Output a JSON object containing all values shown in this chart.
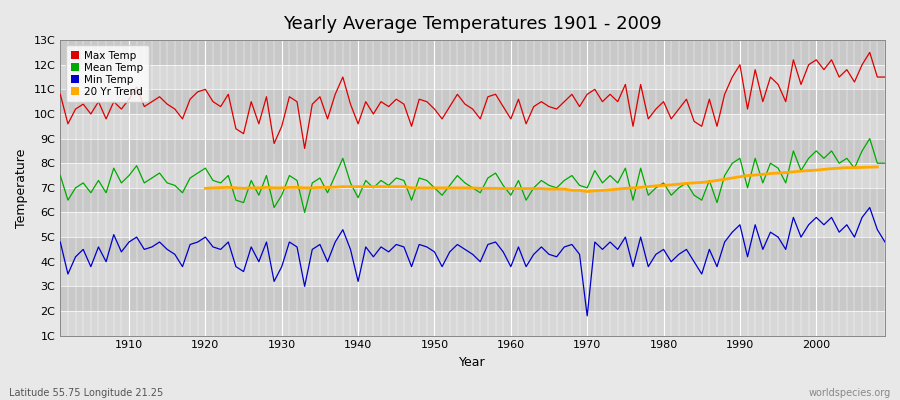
{
  "title": "Yearly Average Temperatures 1901 - 2009",
  "xlabel": "Year",
  "ylabel": "Temperature",
  "bottom_left_text": "Latitude 55.75 Longitude 21.25",
  "bottom_right_text": "worldspecies.org",
  "background_color": "#e8e8e8",
  "plot_bg_color": "#d8d8d8",
  "grid_color": "#ffffff",
  "stripe_colors": [
    "#d8d8d8",
    "#c8c8c8"
  ],
  "ylim_min": 1,
  "ylim_max": 13,
  "ytick_labels": [
    "1C",
    "2C",
    "3C",
    "4C",
    "5C",
    "6C",
    "7C",
    "8C",
    "9C",
    "10C",
    "11C",
    "12C",
    "13C"
  ],
  "ytick_values": [
    1,
    2,
    3,
    4,
    5,
    6,
    7,
    8,
    9,
    10,
    11,
    12,
    13
  ],
  "years": [
    1901,
    1902,
    1903,
    1904,
    1905,
    1906,
    1907,
    1908,
    1909,
    1910,
    1911,
    1912,
    1913,
    1914,
    1915,
    1916,
    1917,
    1918,
    1919,
    1920,
    1921,
    1922,
    1923,
    1924,
    1925,
    1926,
    1927,
    1928,
    1929,
    1930,
    1931,
    1932,
    1933,
    1934,
    1935,
    1936,
    1937,
    1938,
    1939,
    1940,
    1941,
    1942,
    1943,
    1944,
    1945,
    1946,
    1947,
    1948,
    1949,
    1950,
    1951,
    1952,
    1953,
    1954,
    1955,
    1956,
    1957,
    1958,
    1959,
    1960,
    1961,
    1962,
    1963,
    1964,
    1965,
    1966,
    1967,
    1968,
    1969,
    1970,
    1971,
    1972,
    1973,
    1974,
    1975,
    1976,
    1977,
    1978,
    1979,
    1980,
    1981,
    1982,
    1983,
    1984,
    1985,
    1986,
    1987,
    1988,
    1989,
    1990,
    1991,
    1992,
    1993,
    1994,
    1995,
    1996,
    1997,
    1998,
    1999,
    2000,
    2001,
    2002,
    2003,
    2004,
    2005,
    2006,
    2007,
    2008,
    2009
  ],
  "max_temp": [
    10.8,
    9.6,
    10.2,
    10.4,
    10.0,
    10.5,
    9.8,
    10.5,
    10.2,
    10.6,
    11.1,
    10.3,
    10.5,
    10.7,
    10.4,
    10.2,
    9.8,
    10.6,
    10.9,
    11.0,
    10.5,
    10.3,
    10.8,
    9.4,
    9.2,
    10.5,
    9.6,
    10.7,
    8.8,
    9.5,
    10.7,
    10.5,
    8.6,
    10.4,
    10.7,
    9.8,
    10.8,
    11.5,
    10.4,
    9.6,
    10.5,
    10.0,
    10.5,
    10.3,
    10.6,
    10.4,
    9.5,
    10.6,
    10.5,
    10.2,
    9.8,
    10.3,
    10.8,
    10.4,
    10.2,
    9.8,
    10.7,
    10.8,
    10.3,
    9.8,
    10.6,
    9.6,
    10.3,
    10.5,
    10.3,
    10.2,
    10.5,
    10.8,
    10.3,
    10.8,
    11.0,
    10.5,
    10.8,
    10.5,
    11.2,
    9.5,
    11.2,
    9.8,
    10.2,
    10.5,
    9.8,
    10.2,
    10.6,
    9.7,
    9.5,
    10.6,
    9.5,
    10.8,
    11.5,
    12.0,
    10.2,
    11.8,
    10.5,
    11.5,
    11.2,
    10.5,
    12.2,
    11.2,
    12.0,
    12.2,
    11.8,
    12.2,
    11.5,
    11.8,
    11.3,
    12.0,
    12.5,
    11.5,
    11.5
  ],
  "mean_temp": [
    7.5,
    6.5,
    7.0,
    7.2,
    6.8,
    7.3,
    6.8,
    7.8,
    7.2,
    7.5,
    7.9,
    7.2,
    7.4,
    7.6,
    7.2,
    7.1,
    6.8,
    7.4,
    7.6,
    7.8,
    7.3,
    7.2,
    7.5,
    6.5,
    6.4,
    7.3,
    6.7,
    7.5,
    6.2,
    6.7,
    7.5,
    7.3,
    6.0,
    7.2,
    7.4,
    6.8,
    7.5,
    8.2,
    7.2,
    6.6,
    7.3,
    7.0,
    7.3,
    7.1,
    7.4,
    7.3,
    6.5,
    7.4,
    7.3,
    7.0,
    6.7,
    7.1,
    7.5,
    7.2,
    7.0,
    6.8,
    7.4,
    7.6,
    7.1,
    6.7,
    7.3,
    6.5,
    7.0,
    7.3,
    7.1,
    7.0,
    7.3,
    7.5,
    7.1,
    7.0,
    7.7,
    7.2,
    7.5,
    7.2,
    7.8,
    6.5,
    7.8,
    6.7,
    7.0,
    7.2,
    6.7,
    7.0,
    7.2,
    6.7,
    6.5,
    7.3,
    6.4,
    7.5,
    8.0,
    8.2,
    7.0,
    8.2,
    7.2,
    8.0,
    7.8,
    7.2,
    8.5,
    7.7,
    8.2,
    8.5,
    8.2,
    8.5,
    8.0,
    8.2,
    7.8,
    8.5,
    9.0,
    8.0,
    8.0
  ],
  "min_temp": [
    4.8,
    3.5,
    4.2,
    4.5,
    3.8,
    4.6,
    4.0,
    5.1,
    4.4,
    4.8,
    5.0,
    4.5,
    4.6,
    4.8,
    4.5,
    4.3,
    3.8,
    4.7,
    4.8,
    5.0,
    4.6,
    4.5,
    4.8,
    3.8,
    3.6,
    4.6,
    4.0,
    4.8,
    3.2,
    3.8,
    4.8,
    4.6,
    3.0,
    4.5,
    4.7,
    4.0,
    4.8,
    5.3,
    4.5,
    3.2,
    4.6,
    4.2,
    4.6,
    4.4,
    4.7,
    4.6,
    3.8,
    4.7,
    4.6,
    4.4,
    3.8,
    4.4,
    4.7,
    4.5,
    4.3,
    4.0,
    4.7,
    4.8,
    4.4,
    3.8,
    4.6,
    3.8,
    4.3,
    4.6,
    4.3,
    4.2,
    4.6,
    4.7,
    4.3,
    1.8,
    4.8,
    4.5,
    4.8,
    4.5,
    5.0,
    3.8,
    5.0,
    3.8,
    4.3,
    4.5,
    4.0,
    4.3,
    4.5,
    4.0,
    3.5,
    4.5,
    3.8,
    4.8,
    5.2,
    5.5,
    4.2,
    5.5,
    4.5,
    5.2,
    5.0,
    4.5,
    5.8,
    5.0,
    5.5,
    5.8,
    5.5,
    5.8,
    5.2,
    5.5,
    5.0,
    5.8,
    6.2,
    5.3,
    4.8
  ],
  "trend_20yr": [
    null,
    null,
    null,
    null,
    null,
    null,
    null,
    null,
    null,
    null,
    null,
    null,
    null,
    null,
    null,
    null,
    null,
    null,
    null,
    6.98,
    7.0,
    7.01,
    7.02,
    7.0,
    6.98,
    7.0,
    7.0,
    7.02,
    7.0,
    7.0,
    7.02,
    7.02,
    7.0,
    7.0,
    7.02,
    7.02,
    7.03,
    7.05,
    7.05,
    7.05,
    7.05,
    7.05,
    7.05,
    7.05,
    7.05,
    7.05,
    7.0,
    7.0,
    7.0,
    7.0,
    7.0,
    7.0,
    7.0,
    7.0,
    7.0,
    6.98,
    6.98,
    6.98,
    6.97,
    6.97,
    6.97,
    6.97,
    6.97,
    6.97,
    6.95,
    6.95,
    6.95,
    6.9,
    6.9,
    6.85,
    6.88,
    6.9,
    6.92,
    6.95,
    6.98,
    7.0,
    7.02,
    7.05,
    7.08,
    7.1,
    7.12,
    7.15,
    7.18,
    7.2,
    7.22,
    7.25,
    7.3,
    7.35,
    7.4,
    7.45,
    7.5,
    7.52,
    7.55,
    7.58,
    7.6,
    7.62,
    7.65,
    7.68,
    7.7,
    7.72,
    7.75,
    7.78,
    7.8,
    7.82,
    7.82,
    7.83,
    7.84,
    7.85
  ],
  "line_colors": {
    "max": "#dd0000",
    "mean": "#00aa00",
    "min": "#0000cc",
    "trend": "#ffaa00"
  },
  "legend_labels": [
    "Max Temp",
    "Mean Temp",
    "Min Temp",
    "20 Yr Trend"
  ],
  "xticks": [
    1910,
    1920,
    1930,
    1940,
    1950,
    1960,
    1970,
    1980,
    1990,
    2000
  ]
}
